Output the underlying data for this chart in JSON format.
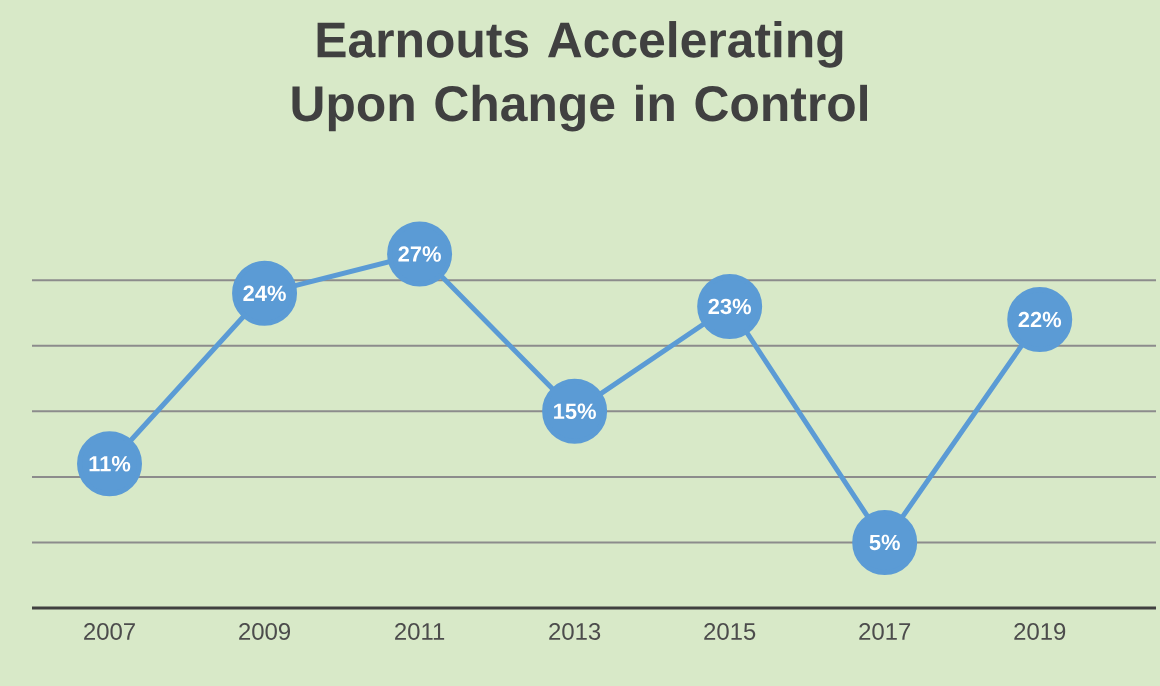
{
  "chart_data": {
    "type": "line",
    "title": "Earnouts Accelerating Upon Change in Control",
    "categories": [
      "2007",
      "2009",
      "2011",
      "2013",
      "2015",
      "2017",
      "2019"
    ],
    "values": [
      11,
      24,
      27,
      15,
      23,
      5,
      22
    ],
    "value_labels": [
      "11%",
      "24%",
      "27%",
      "15%",
      "23%",
      "5%",
      "22%"
    ],
    "color": "#5b9bd5",
    "marker": "circle",
    "line_style": "solid",
    "yticks": [
      {
        "value": 0,
        "label": null
      },
      {
        "value": 5,
        "label": null
      },
      {
        "value": 10,
        "label": null
      },
      {
        "value": 15,
        "label": null
      },
      {
        "value": 20,
        "label": null
      },
      {
        "value": 25,
        "label": null
      }
    ],
    "grid": "y",
    "tick_labels": "x"
  }
}
